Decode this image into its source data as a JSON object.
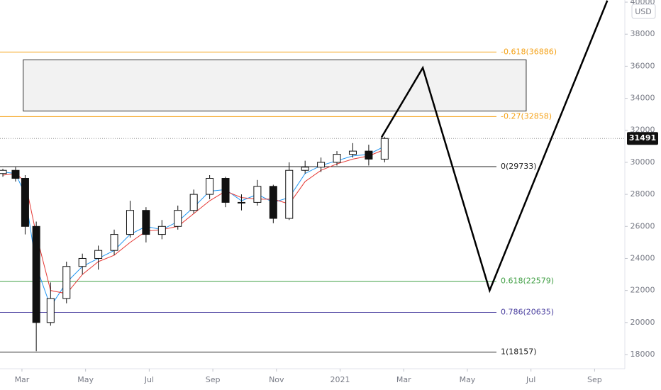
{
  "chart_data": {
    "type": "candlestick",
    "x": [
      -0.6,
      -0.2,
      0.1,
      0.45,
      0.9,
      1.4,
      1.9,
      2.4,
      2.9,
      3.4,
      3.9,
      4.4,
      4.9,
      5.4,
      5.9,
      6.4,
      6.9,
      7.4,
      7.9,
      8.4,
      8.9,
      9.4,
      9.9,
      10.4,
      10.9,
      11.4
    ],
    "open": [
      29300,
      29500,
      29000,
      26000,
      20000,
      21500,
      23500,
      24000,
      24500,
      25500,
      27000,
      25500,
      26000,
      27000,
      28000,
      29000,
      27500,
      27500,
      28500,
      26500,
      29500,
      29700,
      30000,
      30500,
      30700,
      30200
    ],
    "high": [
      29600,
      29700,
      29200,
      26300,
      22500,
      23800,
      24300,
      24800,
      25800,
      27600,
      27200,
      26400,
      27300,
      28300,
      29200,
      29100,
      28000,
      28900,
      28600,
      30000,
      30100,
      30300,
      30700,
      31200,
      31100,
      31600
    ],
    "low": [
      29100,
      28800,
      25500,
      18213,
      19800,
      21200,
      23000,
      23300,
      24200,
      25300,
      25000,
      25200,
      25800,
      26800,
      27700,
      27200,
      27000,
      27300,
      26200,
      26400,
      29300,
      29400,
      29800,
      30300,
      29800,
      30000
    ],
    "close": [
      29500,
      29000,
      26000,
      20000,
      21500,
      23500,
      24000,
      24500,
      25500,
      27000,
      25500,
      26000,
      27000,
      28000,
      29000,
      27500,
      27500,
      28500,
      26500,
      29500,
      29700,
      30000,
      30500,
      30700,
      30200,
      31491
    ],
    "series": [
      {
        "color": "#2196f3",
        "values": [
          29400,
          29300,
          28000,
          23500,
          21000,
          22500,
          23500,
          24000,
          24500,
          25500,
          26000,
          25800,
          26300,
          27200,
          28200,
          28300,
          27600,
          28000,
          27500,
          27800,
          29300,
          29800,
          30100,
          30400,
          30500,
          31000
        ]
      },
      {
        "color": "#e53935",
        "values": [
          29200,
          29300,
          28800,
          25500,
          22000,
          21800,
          23000,
          23800,
          24200,
          25000,
          25700,
          25800,
          26000,
          26800,
          27600,
          28200,
          27800,
          27700,
          27700,
          27400,
          28800,
          29500,
          29900,
          30200,
          30400,
          30800
        ]
      }
    ],
    "xlim": [
      -0.69,
      18.95
    ],
    "xticks": [
      {
        "value": 0,
        "label": "Mar"
      },
      {
        "value": 2,
        "label": "May"
      },
      {
        "value": 4,
        "label": "Jul"
      },
      {
        "value": 6,
        "label": "Sep"
      },
      {
        "value": 8,
        "label": "Nov"
      },
      {
        "value": 10,
        "label": "2021"
      },
      {
        "value": 12,
        "label": "Mar"
      },
      {
        "value": 14,
        "label": "May"
      },
      {
        "value": 16,
        "label": "Jul"
      },
      {
        "value": 18,
        "label": "Sep"
      }
    ],
    "ylim": [
      17115,
      40134
    ],
    "yticks": [
      18000,
      20000,
      22000,
      24000,
      26000,
      28000,
      30000,
      32000,
      34000,
      36000,
      38000,
      40000
    ],
    "currency": "USD",
    "last_price": 31491,
    "levels": [
      {
        "value": 36886,
        "label": "-0.618(36886)",
        "color": "#f5a31a"
      },
      {
        "value": 32858,
        "label": "-0.27(32858)",
        "color": "#f5a31a"
      },
      {
        "value": 29733,
        "label": "0(29733)",
        "color": "#222222"
      },
      {
        "value": 22579,
        "label": "0.618(22579)",
        "color": "#43a047"
      },
      {
        "value": 20635,
        "label": "0.786(20635)",
        "color": "#4a3f9f"
      },
      {
        "value": 18157,
        "label": "1(18157)",
        "color": "#222222"
      }
    ],
    "zone": {
      "x": [
        0.04,
        15.85
      ],
      "y": [
        33200,
        36400
      ]
    },
    "projection": {
      "x": [
        11.3,
        12.6,
        14.7,
        18.4
      ],
      "y": [
        31550,
        35900,
        22000,
        40100
      ]
    }
  }
}
